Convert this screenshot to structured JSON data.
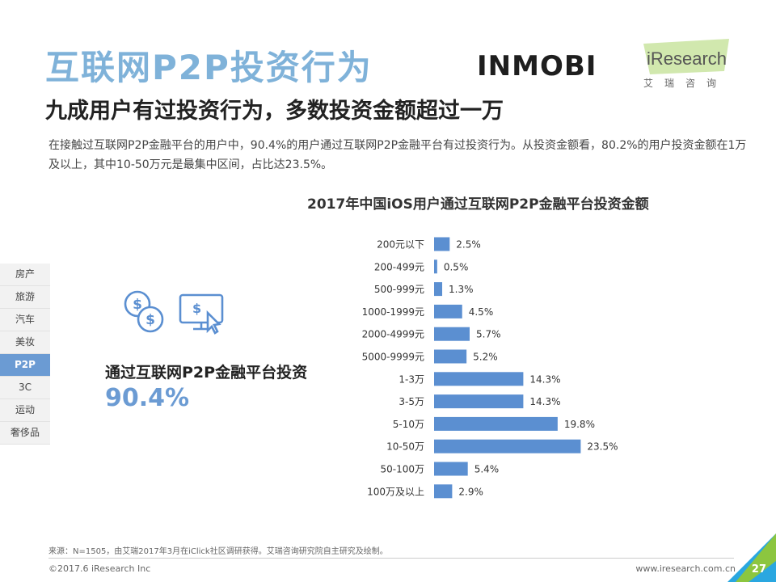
{
  "header": {
    "title": "互联网P2P投资行为",
    "subtitle": "九成用户有过投资行为，多数投资金额超过一万",
    "description": "在接触过互联网P2P金融平台的用户中，90.4%的用户通过互联网P2P金融平台有过投资行为。从投资金额看，80.2%的用户投资金额在1万及以上，其中10-50万元是最集中区间，占比达23.5%。"
  },
  "logos": {
    "inmobi": "INMOBI",
    "iresearch": "iResearch",
    "iresearch_cn": "艾瑞咨询"
  },
  "sidebar": {
    "items": [
      "房产",
      "旅游",
      "汽车",
      "美妆",
      "P2P",
      "3C",
      "运动",
      "奢侈品"
    ],
    "active": "P2P"
  },
  "highlight": {
    "label": "通过互联网P2P金融平台投资",
    "value": "90.4%"
  },
  "chart_data": {
    "type": "bar",
    "orientation": "horizontal",
    "title": "2017年中国iOS用户通过互联网P2P金融平台投资金额",
    "categories": [
      "200元以下",
      "200-499元",
      "500-999元",
      "1000-1999元",
      "2000-4999元",
      "5000-9999元",
      "1-3万",
      "3-5万",
      "5-10万",
      "10-50万",
      "50-100万",
      "100万及以上"
    ],
    "values": [
      2.5,
      0.5,
      1.3,
      4.5,
      5.7,
      5.2,
      14.3,
      14.3,
      19.8,
      23.5,
      5.4,
      2.9
    ],
    "labels": [
      "2.5%",
      "0.5%",
      "1.3%",
      "4.5%",
      "5.7%",
      "5.2%",
      "14.3%",
      "14.3%",
      "19.8%",
      "23.5%",
      "5.4%",
      "2.9%"
    ],
    "unit": "%",
    "bar_color": "#5b8fd1",
    "xlim": [
      0,
      25
    ]
  },
  "footer": {
    "source": "来源：N=1505，由艾瑞2017年3月在iClick社区调研获得。艾瑞咨询研究院自主研究及绘制。",
    "copyright": "©2017.6 iResearch Inc",
    "website": "www.iresearch.com.cn",
    "page": "27"
  },
  "colors": {
    "title": "#7fb2d9",
    "accent": "#6b9bd3",
    "corner_green": "#8cc63f",
    "corner_blue": "#2aa7e0"
  }
}
